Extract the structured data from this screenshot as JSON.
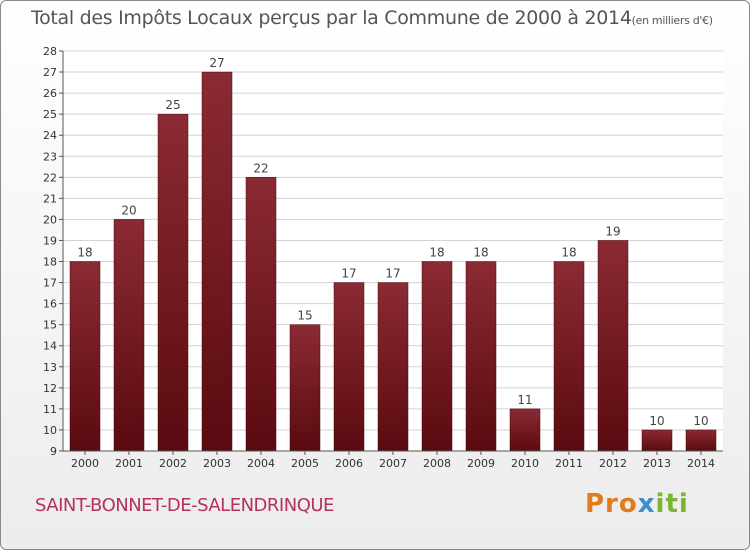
{
  "title": {
    "main": "Total des Impôts Locaux perçus par la Commune de 2000 à 2014",
    "unit": "(en milliers d'€)"
  },
  "commune": "SAINT-BONNET-DE-SALENDRINQUE",
  "logo": {
    "part1": "Pro",
    "part2": "x",
    "part3": "iti"
  },
  "colors": {
    "bar_top": "#8b2a34",
    "bar_bottom": "#5a0a10",
    "accent": "#b5325a"
  },
  "chart_data": {
    "type": "bar",
    "title": "Total des Impôts Locaux perçus par la Commune de 2000 à 2014",
    "xlabel": "",
    "ylabel": "",
    "ylim": [
      9,
      28
    ],
    "yticks": [
      9,
      10,
      11,
      12,
      13,
      14,
      15,
      16,
      17,
      18,
      19,
      20,
      21,
      22,
      23,
      24,
      25,
      26,
      27,
      28
    ],
    "grid": true,
    "categories": [
      "2000",
      "2001",
      "2002",
      "2003",
      "2004",
      "2005",
      "2006",
      "2007",
      "2008",
      "2009",
      "2010",
      "2011",
      "2012",
      "2013",
      "2014"
    ],
    "values": [
      18,
      20,
      25,
      27,
      22,
      15,
      17,
      17,
      18,
      18,
      11,
      18,
      19,
      10,
      10
    ]
  }
}
